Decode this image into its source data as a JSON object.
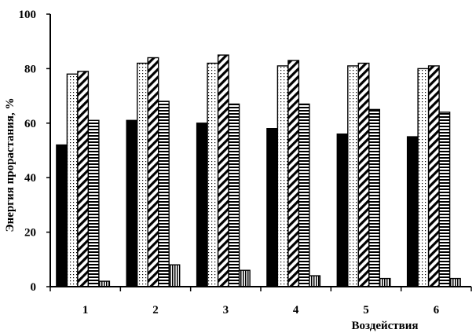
{
  "chart_data": {
    "type": "bar",
    "title": "",
    "xlabel": "Воздействия",
    "ylabel": "Энергия прорастания, %",
    "categories": [
      "1",
      "2",
      "3",
      "4",
      "5",
      "6"
    ],
    "ylim": [
      0,
      100
    ],
    "yticks": [
      "0",
      "20",
      "40",
      "60",
      "80",
      "100"
    ],
    "grid": false,
    "legend": "none",
    "series": [
      {
        "pattern": "solid-black",
        "values": [
          52,
          61,
          60,
          58,
          56,
          55
        ]
      },
      {
        "pattern": "dots",
        "values": [
          78,
          82,
          82,
          81,
          81,
          80
        ]
      },
      {
        "pattern": "diagonal-hatch",
        "values": [
          79,
          84,
          85,
          83,
          82,
          81
        ]
      },
      {
        "pattern": "horizontal-lines",
        "values": [
          61,
          68,
          67,
          67,
          65,
          64
        ]
      },
      {
        "pattern": "vertical-lines",
        "values": [
          2,
          8,
          6,
          4,
          3,
          3
        ]
      }
    ]
  }
}
